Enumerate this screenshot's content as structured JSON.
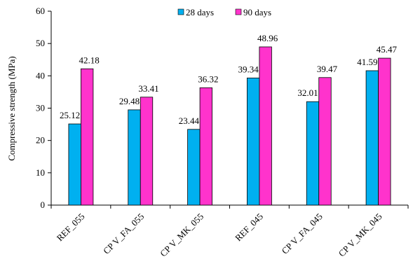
{
  "chart_data": {
    "type": "bar",
    "categories": [
      "REF_055",
      "CP V_FA_055",
      "CP V_MK_055",
      "REF_045",
      "CP V_FA_045",
      "CP V_MK_045"
    ],
    "series": [
      {
        "name": "28 days",
        "color": "#00B0F0",
        "values": [
          25.12,
          29.48,
          23.44,
          39.34,
          32.01,
          41.59
        ],
        "labels": [
          "25.12",
          "29.48",
          "23.44",
          "39.34",
          "32.01",
          "41.59"
        ]
      },
      {
        "name": "90 days",
        "color": "#FF33CC",
        "values": [
          42.18,
          33.41,
          36.32,
          48.96,
          39.47,
          45.47
        ],
        "labels": [
          "42.18",
          "33.41",
          "36.32",
          "48.96",
          "39.47",
          "45.47"
        ]
      }
    ],
    "ylabel": "Compressive  strength  (MPa)",
    "ylim": [
      0,
      60
    ],
    "yticks": [
      0,
      10,
      20,
      30,
      40,
      50,
      60
    ],
    "ytick_labels": [
      "0",
      "10",
      "20",
      "30",
      "40",
      "50",
      "60"
    ],
    "grid": false,
    "legend_position": "top-center"
  }
}
